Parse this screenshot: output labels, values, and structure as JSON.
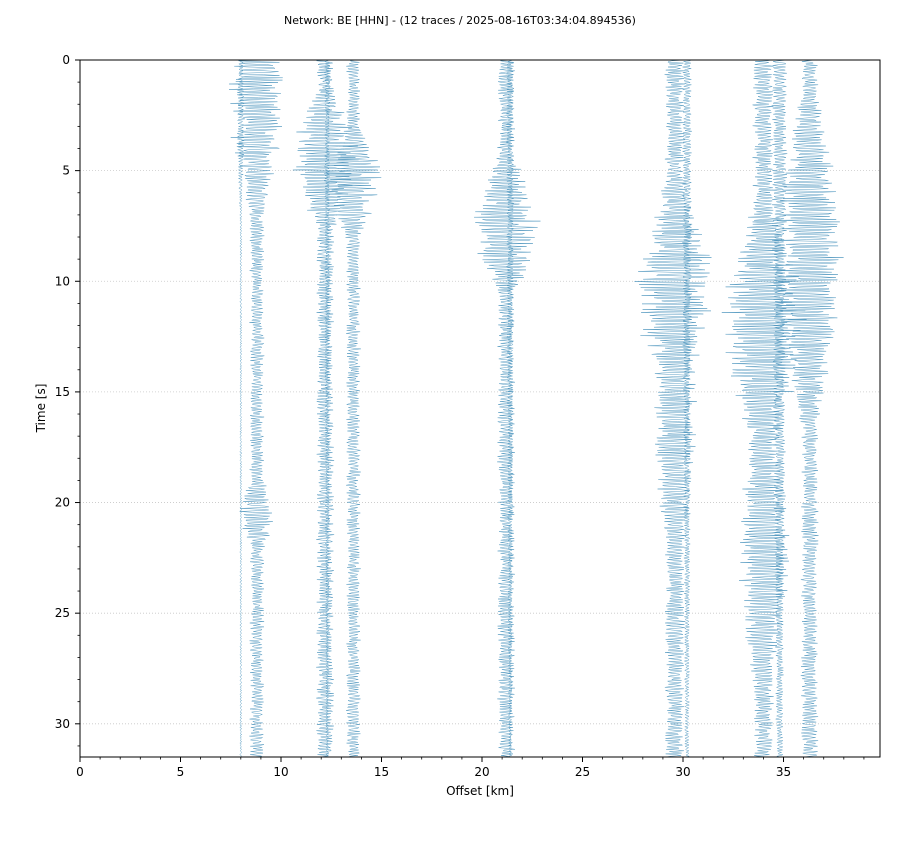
{
  "figure": {
    "title": "Network: BE [HHN] - (12 traces / 2025-08-16T03:34:04.894536)"
  },
  "colors": {
    "trace": "#4a93bc",
    "grid": "#c8c8c8",
    "axis": "#000000"
  },
  "chart_data": {
    "type": "line",
    "title": "Network: BE [HHN] - (12 traces / 2025-08-16T03:34:04.894536)",
    "xlabel": "Offset [km]",
    "ylabel": "Time [s]",
    "xlim": [
      0,
      39.8
    ],
    "ylim": [
      31.5,
      0
    ],
    "y_inverted": true,
    "x_ticks": [
      0,
      5,
      10,
      15,
      20,
      25,
      30,
      35
    ],
    "y_ticks": [
      0,
      5,
      10,
      15,
      20,
      25,
      30
    ],
    "grid": "horizontal dotted at y ticks",
    "traces": [
      {
        "offset": 8.0,
        "peak_amplitude": 0.2
      },
      {
        "offset": 8.8,
        "peak_amplitude": 1.5
      },
      {
        "offset": 12.2,
        "peak_amplitude": 1.8
      },
      {
        "offset": 12.3,
        "peak_amplitude": 0.15
      },
      {
        "offset": 13.6,
        "peak_amplitude": 1.5
      },
      {
        "offset": 21.2,
        "peak_amplitude": 1.8
      },
      {
        "offset": 21.4,
        "peak_amplitude": 0.2
      },
      {
        "offset": 29.6,
        "peak_amplitude": 2.1
      },
      {
        "offset": 30.2,
        "peak_amplitude": 0.25
      },
      {
        "offset": 34.0,
        "peak_amplitude": 2.2
      },
      {
        "offset": 34.8,
        "peak_amplitude": 0.4
      },
      {
        "offset": 36.3,
        "peak_amplitude": 1.8
      }
    ]
  }
}
